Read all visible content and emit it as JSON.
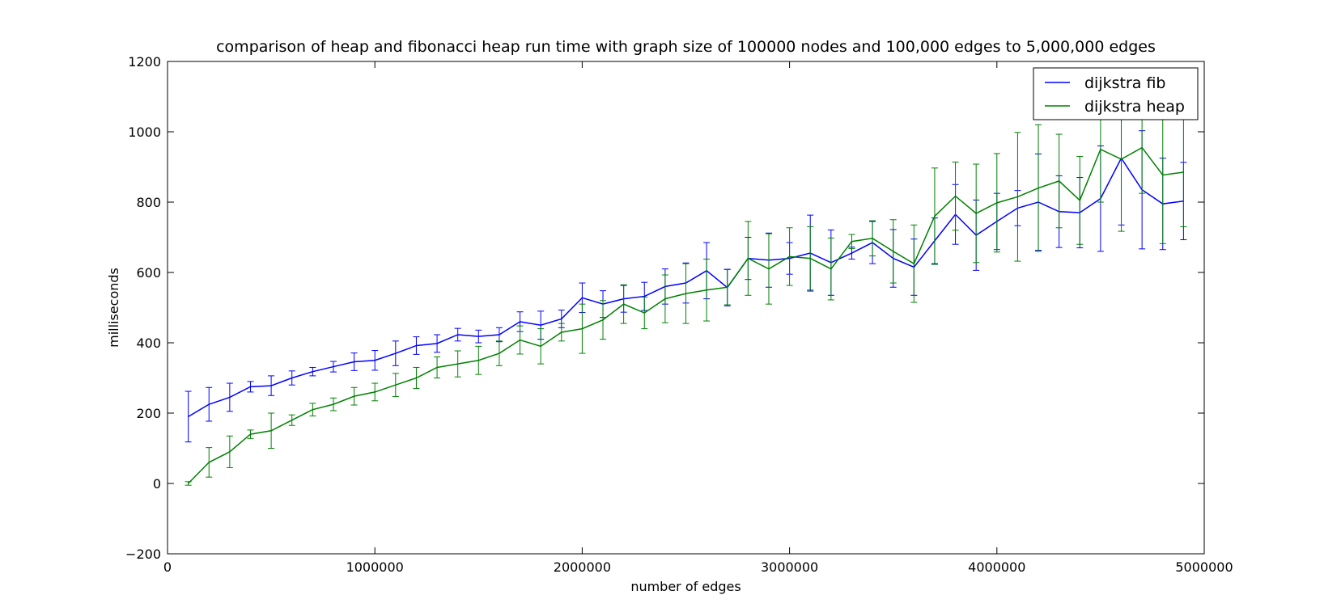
{
  "chart_data": {
    "type": "line",
    "title": "comparison of heap and fibonacci heap run time with graph size of 100000 nodes and 100,000 edges to 5,000,000 edges",
    "xlabel": "number of edges",
    "ylabel": "milliseconds",
    "xlim": [
      0,
      5000000
    ],
    "ylim": [
      -200,
      1200
    ],
    "xticks": [
      0,
      1000000,
      2000000,
      3000000,
      4000000,
      5000000
    ],
    "xtick_labels": [
      "0",
      "1000000",
      "2000000",
      "3000000",
      "4000000",
      "5000000"
    ],
    "yticks": [
      -200,
      0,
      200,
      400,
      600,
      800,
      1000,
      1200
    ],
    "ytick_labels": [
      "−200",
      "0",
      "200",
      "400",
      "600",
      "800",
      "1000",
      "1200"
    ],
    "grid": false,
    "legend_position": "top-right",
    "error_bars": true,
    "x": [
      100000,
      200000,
      300000,
      400000,
      500000,
      600000,
      700000,
      800000,
      900000,
      1000000,
      1100000,
      1200000,
      1300000,
      1400000,
      1500000,
      1600000,
      1700000,
      1800000,
      1900000,
      2000000,
      2100000,
      2200000,
      2300000,
      2400000,
      2500000,
      2600000,
      2700000,
      2800000,
      2900000,
      3000000,
      3100000,
      3200000,
      3300000,
      3400000,
      3500000,
      3600000,
      3700000,
      3800000,
      3900000,
      4000000,
      4100000,
      4200000,
      4300000,
      4400000,
      4500000,
      4600000,
      4700000,
      4800000,
      4900000
    ],
    "series": [
      {
        "name": "dijkstra fib",
        "color": "#0000ff",
        "values": [
          190,
          225,
          245,
          275,
          278,
          300,
          318,
          332,
          346,
          350,
          370,
          392,
          398,
          423,
          418,
          423,
          460,
          450,
          468,
          528,
          510,
          525,
          532,
          560,
          570,
          605,
          557,
          640,
          635,
          640,
          655,
          628,
          655,
          685,
          640,
          615,
          690,
          765,
          706,
          745,
          783,
          800,
          773,
          770,
          810,
          925,
          835,
          795,
          803
        ],
        "errors": [
          72,
          48,
          40,
          15,
          28,
          20,
          12,
          15,
          25,
          28,
          35,
          25,
          25,
          18,
          18,
          20,
          28,
          40,
          25,
          42,
          38,
          38,
          40,
          50,
          57,
          80,
          52,
          60,
          77,
          45,
          108,
          93,
          17,
          60,
          82,
          80,
          65,
          85,
          100,
          80,
          50,
          137,
          102,
          100,
          150,
          190,
          168,
          130,
          110
        ]
      },
      {
        "name": "dijkstra heap",
        "color": "#008000",
        "values": [
          0,
          60,
          90,
          140,
          150,
          180,
          210,
          225,
          248,
          260,
          280,
          300,
          330,
          340,
          350,
          370,
          408,
          390,
          430,
          440,
          465,
          510,
          485,
          525,
          540,
          550,
          558,
          640,
          610,
          645,
          640,
          610,
          688,
          697,
          660,
          625,
          760,
          817,
          768,
          798,
          815,
          840,
          860,
          805,
          950,
          922,
          955,
          877,
          885
        ],
        "errors": [
          5,
          42,
          45,
          12,
          50,
          15,
          18,
          18,
          25,
          25,
          33,
          30,
          30,
          37,
          40,
          35,
          40,
          50,
          25,
          70,
          55,
          55,
          45,
          68,
          85,
          88,
          50,
          105,
          100,
          82,
          90,
          88,
          20,
          50,
          90,
          110,
          137,
          97,
          140,
          140,
          183,
          180,
          133,
          125,
          150,
          205,
          130,
          195,
          155
        ]
      }
    ]
  }
}
